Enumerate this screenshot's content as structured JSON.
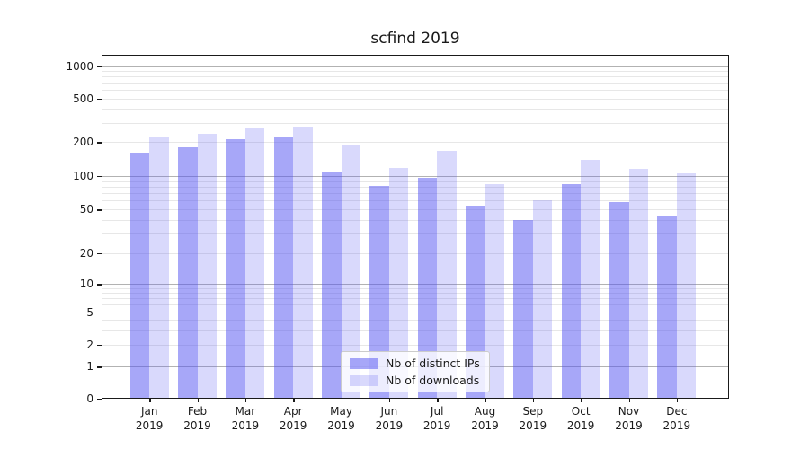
{
  "chart_data": {
    "type": "bar",
    "title": "scfind 2019",
    "categories": [
      "Jan 2019",
      "Feb 2019",
      "Mar 2019",
      "Apr 2019",
      "May 2019",
      "Jun 2019",
      "Jul 2019",
      "Aug 2019",
      "Sep 2019",
      "Oct 2019",
      "Nov 2019",
      "Dec 2019"
    ],
    "series": [
      {
        "name": "Nb of distinct IPs",
        "color": "#5050F2",
        "fill_alpha": 0.5,
        "approx_rendered_color": "#A8A8F6",
        "values": [
          161,
          179,
          212,
          221,
          107,
          81,
          96,
          54,
          40,
          85,
          58,
          43
        ]
      },
      {
        "name": "Nb of downloads",
        "color": "#5050F2",
        "fill_alpha": 0.22,
        "approx_rendered_color": "#D8D8F8",
        "values": [
          221,
          240,
          266,
          277,
          188,
          117,
          167,
          84,
          60,
          138,
          115,
          106
        ]
      }
    ],
    "xlabel": "",
    "ylabel": "",
    "yscale": "symlog",
    "yticks": [
      0,
      1,
      2,
      5,
      10,
      20,
      50,
      100,
      200,
      500,
      1000
    ],
    "ylim": [
      0,
      1300
    ],
    "grid": "horizontal major and log-minor gridlines",
    "legend_position": "lower center, inside plot",
    "frame_color": "#1a1a1a",
    "major_grid_color": "#b2b2b2",
    "minor_grid_color": "#e7e7e7"
  }
}
